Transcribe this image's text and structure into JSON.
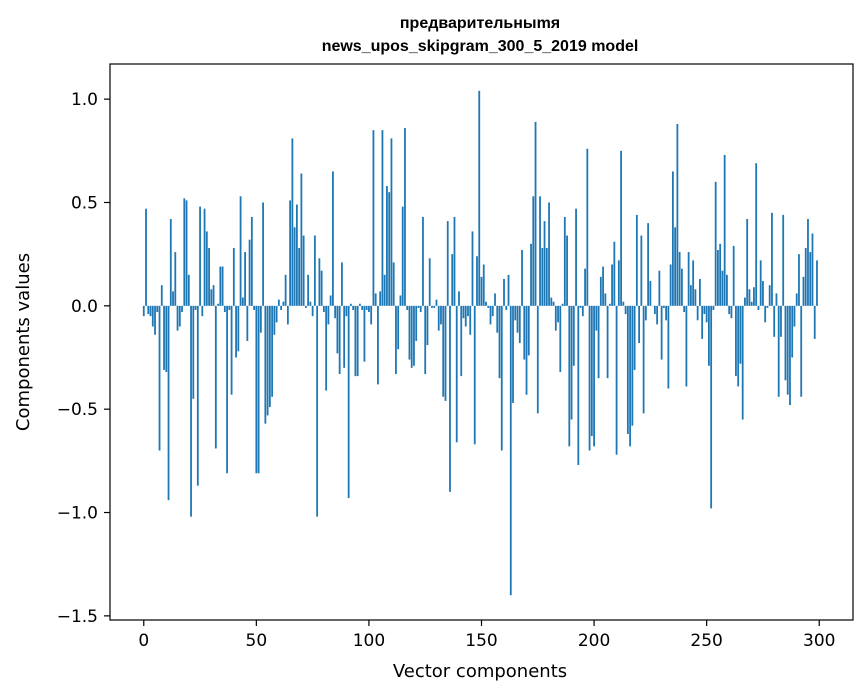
{
  "chart_data": {
    "type": "bar",
    "title_lines": [
      "предварительныmя",
      "news_upos_skipgram_300_5_2019 model"
    ],
    "xlabel": "Vector components",
    "ylabel": "Components values",
    "xlim": [
      -15,
      315
    ],
    "ylim": [
      -1.52,
      1.17
    ],
    "xticks": [
      0,
      50,
      100,
      150,
      200,
      250,
      300
    ],
    "xtick_labels": [
      "0",
      "50",
      "100",
      "150",
      "200",
      "250",
      "300"
    ],
    "yticks": [
      -1.5,
      -1.0,
      -0.5,
      0.0,
      0.5,
      1.0
    ],
    "ytick_labels": [
      "−1.5",
      "−1.0",
      "−0.5",
      "0.0",
      "0.5",
      "1.0"
    ],
    "grid": false,
    "legend": "none",
    "bar_color": "#1f77b4",
    "x_start": 0,
    "values": [
      -0.05,
      0.47,
      -0.04,
      -0.05,
      -0.1,
      -0.14,
      -0.03,
      -0.7,
      0.1,
      -0.31,
      -0.32,
      -0.94,
      0.42,
      0.07,
      0.26,
      -0.12,
      -0.1,
      -0.03,
      0.52,
      0.51,
      0.15,
      -1.02,
      -0.45,
      -0.02,
      -0.87,
      0.48,
      -0.05,
      0.47,
      0.36,
      0.28,
      0.08,
      0.1,
      -0.69,
      0.01,
      0.19,
      0.19,
      -0.03,
      -0.81,
      -0.02,
      -0.43,
      0.28,
      -0.25,
      -0.22,
      0.53,
      0.04,
      0.26,
      -0.17,
      0.32,
      0.43,
      -0.02,
      -0.81,
      -0.81,
      -0.13,
      0.5,
      -0.57,
      -0.53,
      -0.49,
      -0.44,
      -0.14,
      -0.08,
      0.03,
      -0.02,
      0.02,
      0.15,
      -0.09,
      0.51,
      0.81,
      0.38,
      0.49,
      0.28,
      0.64,
      0.34,
      -0.01,
      0.15,
      0.02,
      -0.05,
      0.34,
      -1.02,
      0.23,
      0.17,
      -0.03,
      -0.41,
      -0.09,
      0.05,
      0.65,
      -0.06,
      -0.23,
      -0.33,
      0.21,
      -0.3,
      -0.05,
      -0.93,
      0.01,
      -0.02,
      -0.34,
      -0.34,
      0.01,
      -0.02,
      -0.27,
      -0.02,
      -0.03,
      -0.09,
      0.85,
      0.06,
      -0.38,
      0.07,
      0.85,
      0.15,
      0.58,
      0.55,
      0.81,
      0.21,
      -0.33,
      -0.21,
      0.05,
      0.48,
      0.86,
      -0.02,
      -0.26,
      -0.3,
      -0.29,
      -0.17,
      -0.01,
      -0.03,
      0.43,
      -0.33,
      -0.19,
      0.23,
      -0.01,
      -0.01,
      0.03,
      -0.12,
      -0.09,
      -0.44,
      -0.46,
      0.41,
      -0.9,
      0.25,
      0.43,
      -0.66,
      0.07,
      -0.34,
      -0.06,
      -0.1,
      -0.05,
      -0.14,
      0.36,
      -0.67,
      0.24,
      1.04,
      0.14,
      0.2,
      0.02,
      -0.01,
      -0.09,
      -0.05,
      0.06,
      -0.13,
      -0.35,
      -0.7,
      0.13,
      -0.02,
      0.15,
      -1.4,
      -0.47,
      -0.07,
      -0.13,
      -0.18,
      0.27,
      -0.26,
      -0.43,
      -0.24,
      0.3,
      0.53,
      0.89,
      -0.52,
      0.53,
      0.28,
      0.41,
      0.28,
      0.5,
      0.04,
      0.02,
      -0.12,
      -0.08,
      -0.32,
      0.01,
      0.43,
      0.34,
      -0.68,
      -0.55,
      -0.29,
      0.47,
      -0.77,
      -0.01,
      -0.05,
      0.18,
      0.76,
      -0.7,
      -0.63,
      -0.68,
      -0.12,
      -0.35,
      0.14,
      0.19,
      0.06,
      -0.35,
      0.01,
      0.2,
      0.31,
      -0.72,
      0.22,
      0.75,
      0.02,
      -0.04,
      -0.62,
      -0.68,
      -0.58,
      -0.31,
      0.44,
      -0.18,
      0.34,
      -0.52,
      -0.07,
      0.4,
      0.12,
      0.0,
      -0.04,
      -0.09,
      0.17,
      -0.26,
      -0.01,
      -0.07,
      -0.4,
      0.2,
      0.65,
      0.38,
      0.88,
      0.26,
      0.18,
      -0.03,
      -0.39,
      0.26,
      0.1,
      0.22,
      0.08,
      -0.07,
      0.13,
      -0.16,
      -0.04,
      -0.08,
      -0.29,
      -0.98,
      -0.02,
      0.6,
      0.27,
      0.3,
      0.17,
      0.73,
      0.15,
      -0.04,
      -0.06,
      0.29,
      -0.34,
      -0.39,
      -0.28,
      -0.55,
      0.04,
      0.42,
      0.08,
      0.02,
      0.09,
      0.69,
      -0.02,
      0.22,
      0.12,
      -0.08,
      -0.01,
      0.1,
      0.45,
      -0.15,
      0.06,
      -0.44,
      -0.15,
      0.44,
      -0.36,
      -0.43,
      -0.48,
      -0.25,
      -0.1,
      0.06,
      0.25,
      -0.44,
      0.14,
      0.28,
      0.42,
      0.26,
      0.35,
      -0.16,
      0.22
    ]
  }
}
